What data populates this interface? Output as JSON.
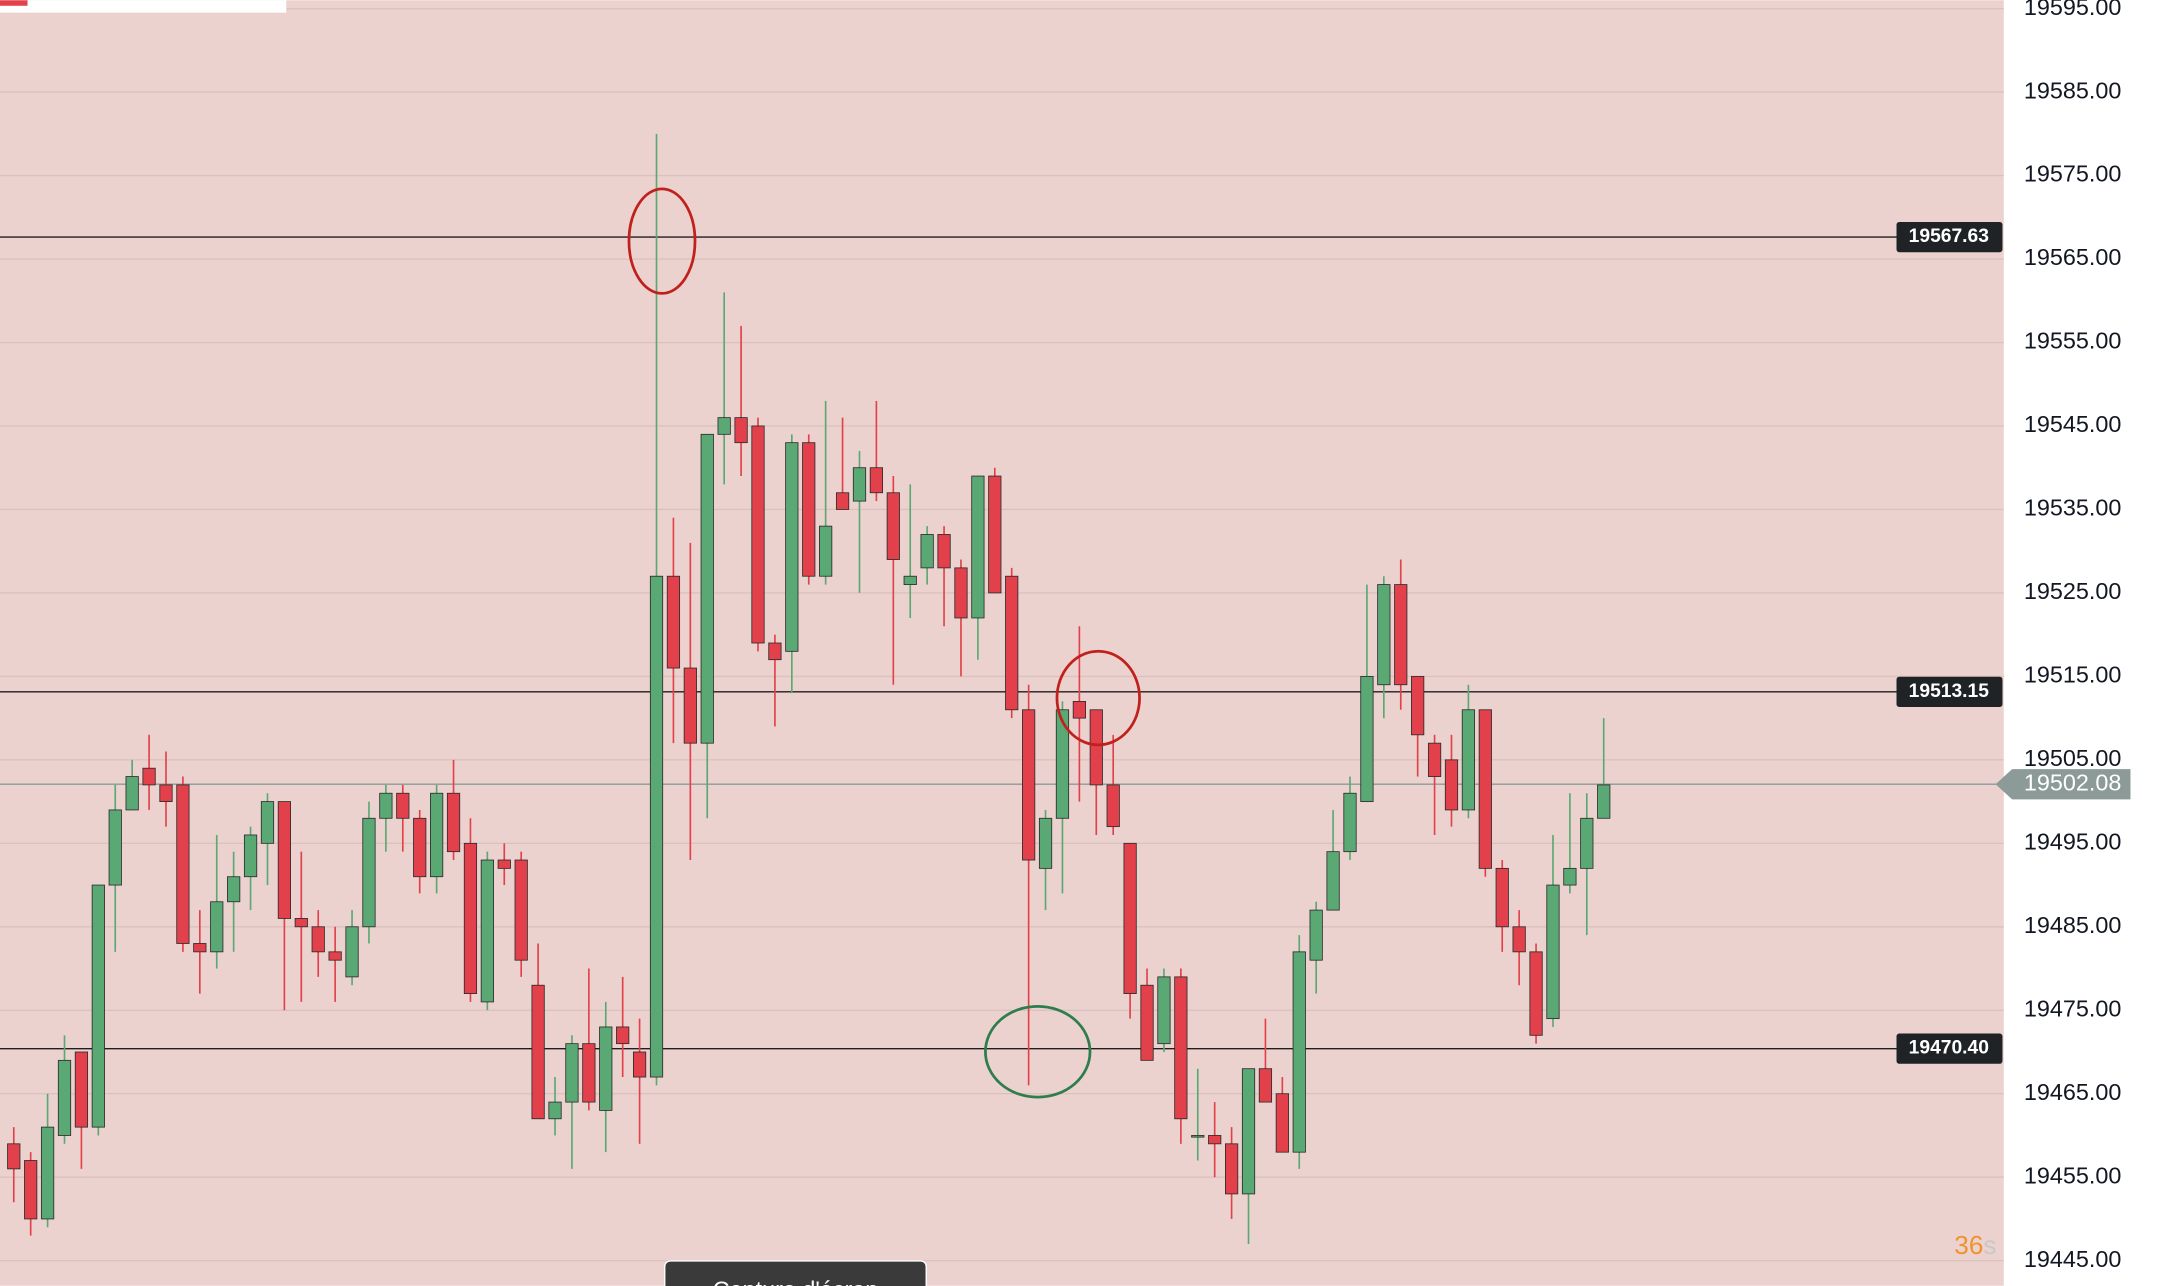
{
  "chart_data": {
    "type": "candlestick",
    "up_color": "#5aa974",
    "down_color": "#e2414b",
    "background": "#ecd2cf",
    "open": [
      19459,
      19457,
      19450,
      19460,
      19470,
      19461,
      19490,
      19499,
      19504,
      19502,
      19502,
      19483,
      19482,
      19488,
      19491,
      19495,
      19500,
      19486,
      19485,
      19482,
      19479,
      19485,
      19498,
      19501,
      19498,
      19491,
      19501,
      19495,
      19476,
      19493,
      19493,
      19478,
      19462,
      19464,
      19471,
      19463,
      19473,
      19470,
      19467,
      19527,
      19516,
      19507,
      19544,
      19546,
      19545,
      19519,
      19518,
      19543,
      19527,
      19537,
      19536,
      19540,
      19537,
      19526,
      19528,
      19532,
      19528,
      19522,
      19539,
      19527,
      19511,
      19492,
      19498,
      19512,
      19511,
      19502,
      19495,
      19478,
      19471,
      19479,
      19460,
      19460,
      19459,
      19453,
      19468,
      19465,
      19458,
      19481,
      19487,
      19494,
      19500,
      19514,
      19526,
      19515,
      19507,
      19505,
      19499,
      19511,
      19492,
      19485,
      19482,
      19474,
      19490,
      19492,
      19498
    ],
    "high": [
      19461,
      19458,
      19465,
      19472,
      19470,
      19490,
      19502,
      19505,
      19508,
      19506,
      19503,
      19487,
      19496,
      19494,
      19497,
      19501,
      19500,
      19494,
      19487,
      19485,
      19487,
      19500,
      19502,
      19502,
      19499,
      19502,
      19505,
      19498,
      19494,
      19495,
      19494,
      19483,
      19467,
      19472,
      19480,
      19476,
      19479,
      19474,
      19580,
      19534,
      19531,
      19544,
      19561,
      19557,
      19546,
      19520,
      19544,
      19544,
      19548,
      19546,
      19542,
      19548,
      19539,
      19538,
      19533,
      19533,
      19529,
      19539,
      19540,
      19528,
      19514,
      19499,
      19512,
      19521,
      19511,
      19508,
      19495,
      19480,
      19480,
      19480,
      19468,
      19464,
      19461,
      19468,
      19474,
      19467,
      19484,
      19488,
      19499,
      19503,
      19526,
      19527,
      19529,
      19515,
      19508,
      19508,
      19514,
      19511,
      19493,
      19487,
      19483,
      19496,
      19501,
      19501,
      19510
    ],
    "low": [
      19452,
      19448,
      19449,
      19459,
      19456,
      19460,
      19482,
      19499,
      19499,
      19497,
      19482,
      19477,
      19480,
      19482,
      19487,
      19490,
      19475,
      19476,
      19479,
      19476,
      19478,
      19483,
      19494,
      19494,
      19489,
      19489,
      19493,
      19476,
      19475,
      19490,
      19479,
      19462,
      19460,
      19456,
      19463,
      19458,
      19467,
      19459,
      19466,
      19507,
      19493,
      19498,
      19538,
      19539,
      19518,
      19509,
      19513,
      19526,
      19526,
      19535,
      19525,
      19536,
      19514,
      19522,
      19526,
      19521,
      19515,
      19517,
      19525,
      19510,
      19466,
      19487,
      19489,
      19500,
      19496,
      19496,
      19474,
      19469,
      19470,
      19459,
      19457,
      19455,
      19450,
      19447,
      19464,
      19458,
      19456,
      19477,
      19487,
      19493,
      19500,
      19510,
      19511,
      19503,
      19496,
      19497,
      19498,
      19491,
      19482,
      19478,
      19471,
      19473,
      19489,
      19484,
      19498
    ],
    "close": [
      19456,
      19450,
      19461,
      19469,
      19461,
      19490,
      19499,
      19503,
      19502,
      19500,
      19483,
      19482,
      19488,
      19491,
      19496,
      19500,
      19486,
      19485,
      19482,
      19481,
      19485,
      19498,
      19501,
      19498,
      19491,
      19501,
      19494,
      19477,
      19493,
      19492,
      19481,
      19462,
      19464,
      19471,
      19464,
      19473,
      19471,
      19467,
      19527,
      19516,
      19507,
      19544,
      19546,
      19543,
      19519,
      19517,
      19543,
      19527,
      19533,
      19535,
      19540,
      19537,
      19529,
      19527,
      19532,
      19528,
      19522,
      19539,
      19525,
      19511,
      19493,
      19498,
      19511,
      19510,
      19502,
      19497,
      19477,
      19469,
      19479,
      19462,
      19460,
      19459,
      19453,
      19468,
      19464,
      19458,
      19482,
      19487,
      19494,
      19501,
      19515,
      19526,
      19514,
      19508,
      19503,
      19499,
      19511,
      19492,
      19485,
      19482,
      19472,
      19490,
      19492,
      19498,
      19502
    ],
    "ylim": [
      19442,
      19596
    ],
    "yticks": [
      {
        "value": 19445,
        "label": "19445.00"
      },
      {
        "value": 19455,
        "label": "19455.00"
      },
      {
        "value": 19465,
        "label": "19465.00"
      },
      {
        "value": 19475,
        "label": "19475.00"
      },
      {
        "value": 19485,
        "label": "19485.00"
      },
      {
        "value": 19495,
        "label": "19495.00"
      },
      {
        "value": 19505,
        "label": "19505.00"
      },
      {
        "value": 19515,
        "label": "19515.00"
      },
      {
        "value": 19525,
        "label": "19525.00"
      },
      {
        "value": 19535,
        "label": "19535.00"
      },
      {
        "value": 19545,
        "label": "19545.00"
      },
      {
        "value": 19555,
        "label": "19555.00"
      },
      {
        "value": 19565,
        "label": "19565.00"
      },
      {
        "value": 19575,
        "label": "19575.00"
      },
      {
        "value": 19585,
        "label": "19585.00"
      },
      {
        "value": 19595,
        "label": "19595.00"
      }
    ],
    "grid": true,
    "levels": [
      19567.63,
      19513.15,
      {
        "value": 19470.4,
        "label": "19470.40"
      }
    ],
    "current_price": 19502.08,
    "countdown": "36",
    "countdown_unit": "s"
  },
  "button": "Capture d'écran"
}
